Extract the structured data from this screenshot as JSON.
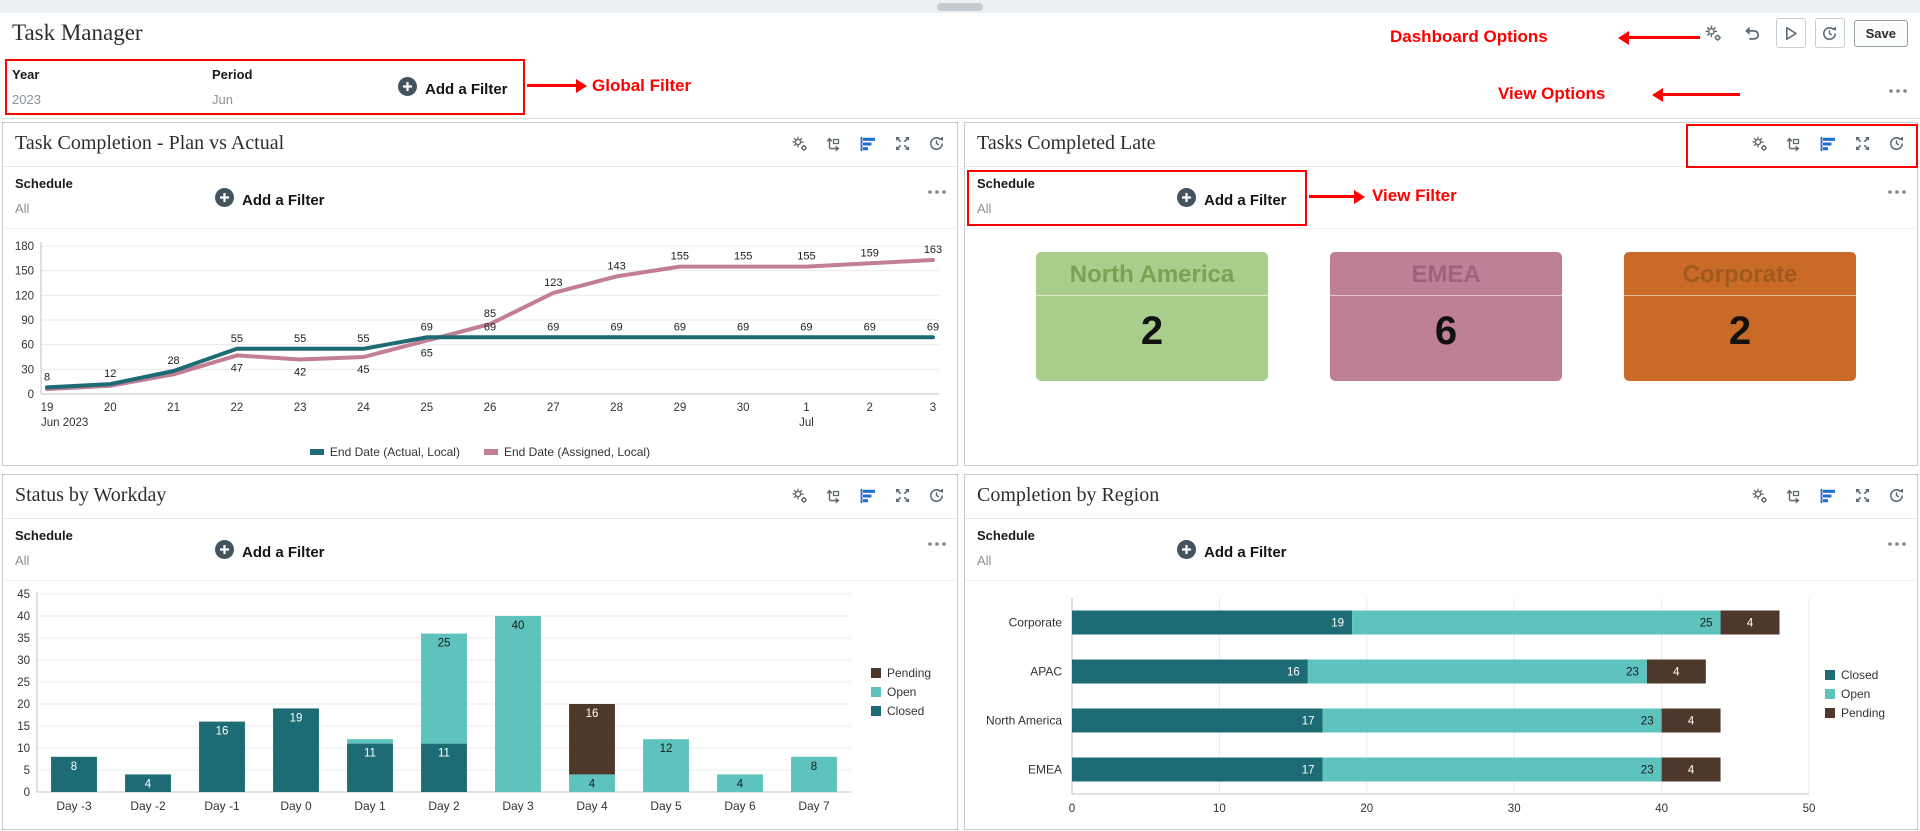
{
  "app": {
    "title": "Task Manager",
    "save_label": "Save"
  },
  "strings": {
    "add_filter": "Add a Filter",
    "schedule_label": "Schedule",
    "schedule_value": "All"
  },
  "global_filters": {
    "year_label": "Year",
    "year_value": "2023",
    "period_label": "Period",
    "period_value": "Jun"
  },
  "annotations": {
    "color": "#ff0000",
    "dashboard_options": "Dashboard Options",
    "global_filter": "Global Filter",
    "view_options": "View Options",
    "view_filter": "View Filter"
  },
  "tiles": [
    {
      "title": "Task Completion - Plan vs Actual"
    },
    {
      "title": "Tasks Completed Late"
    },
    {
      "title": "Status by Workday"
    },
    {
      "title": "Completion by Region"
    }
  ],
  "kpis": [
    {
      "label": "North America",
      "value": "2",
      "bg": "#a9cd8c",
      "title_color": "#79a254"
    },
    {
      "label": "EMEA",
      "value": "6",
      "bg": "#bf7f96",
      "title_color": "#9c6380"
    },
    {
      "label": "Corporate",
      "value": "2",
      "bg": "#c96b27",
      "title_color": "#a05a1e"
    }
  ],
  "icons": {
    "dashboard_toolbar": [
      "settings-gears-icon",
      "undo-icon",
      "run-icon",
      "history-icon"
    ],
    "tile_toolbar": [
      "settings-gears-icon",
      "pivot-icon",
      "chart-type-icon",
      "maximize-icon",
      "refresh-icon"
    ],
    "filter_add": "plus-circle-icon",
    "overflow_menu": "ellipsis-icon"
  },
  "chart_data": [
    {
      "id": "plan-vs-actual",
      "type": "line",
      "title": "Task Completion - Plan vs Actual",
      "x": [
        "19",
        "20",
        "21",
        "22",
        "23",
        "24",
        "25",
        "26",
        "27",
        "28",
        "29",
        "30",
        "1",
        "2",
        "3"
      ],
      "x_sublabels": {
        "0": "Jun 2023",
        "12": "Jul"
      },
      "ylim": [
        0,
        180
      ],
      "ytick": 30,
      "grid": true,
      "legend_position": "bottom",
      "series": [
        {
          "name": "End Date (Actual, Local)",
          "color": "#1d6b74",
          "values": [
            8,
            12,
            28,
            55,
            55,
            55,
            69,
            69,
            69,
            69,
            69,
            69,
            69,
            69,
            69
          ],
          "labels": [
            "8",
            "12",
            "28",
            "55",
            "55",
            "55",
            "69",
            "69",
            "69",
            "69",
            "69",
            "69",
            "69",
            "69",
            "69"
          ]
        },
        {
          "name": "End Date (Assigned, Local)",
          "color": "#c17e95",
          "values": [
            6,
            10,
            24,
            47,
            42,
            45,
            65,
            85,
            123,
            143,
            155,
            155,
            155,
            159,
            163
          ],
          "labels": [
            "",
            "",
            "",
            "47",
            "42",
            "45",
            "65",
            "85",
            "123",
            "143",
            "155",
            "155",
            "155",
            "159",
            "163"
          ]
        }
      ]
    },
    {
      "id": "status-by-workday",
      "type": "stacked_column",
      "title": "Status by Workday",
      "categories": [
        "Day -3",
        "Day -2",
        "Day -1",
        "Day 0",
        "Day 1",
        "Day 2",
        "Day 3",
        "Day 4",
        "Day 5",
        "Day 6",
        "Day 7"
      ],
      "ylim": [
        0,
        45
      ],
      "ytick": 5,
      "grid": true,
      "legend_order": [
        "Pending",
        "Open",
        "Closed"
      ],
      "legend_position": "right",
      "series": [
        {
          "name": "Closed",
          "color": "#1d6b74",
          "label_color": "#ffffff",
          "values": [
            8,
            4,
            16,
            19,
            11,
            11,
            0,
            0,
            0,
            0,
            0
          ]
        },
        {
          "name": "Open",
          "color": "#5ec3bd",
          "label_color": "#1a1a1a",
          "values": [
            0,
            0,
            0,
            0,
            1,
            25,
            40,
            4,
            12,
            4,
            8
          ]
        },
        {
          "name": "Pending",
          "color": "#4e382b",
          "label_color": "#ffffff",
          "values": [
            0,
            0,
            0,
            0,
            0,
            0,
            0,
            16,
            0,
            0,
            0
          ]
        }
      ]
    },
    {
      "id": "completion-by-region",
      "type": "stacked_bar",
      "title": "Completion by Region",
      "categories": [
        "Corporate",
        "APAC",
        "North America",
        "EMEA"
      ],
      "xlim": [
        0,
        50
      ],
      "xtick": 10,
      "grid": true,
      "legend_order": [
        "Closed",
        "Open",
        "Pending"
      ],
      "legend_position": "right",
      "series": [
        {
          "name": "Closed",
          "color": "#1d6b74",
          "label_color": "#ffffff",
          "values": [
            19,
            16,
            17,
            17
          ]
        },
        {
          "name": "Open",
          "color": "#5ec3bd",
          "label_color": "#1a1a1a",
          "values": [
            25,
            23,
            23,
            23
          ]
        },
        {
          "name": "Pending",
          "color": "#4e382b",
          "label_color": "#ffffff",
          "values": [
            4,
            4,
            4,
            4
          ]
        }
      ]
    }
  ]
}
